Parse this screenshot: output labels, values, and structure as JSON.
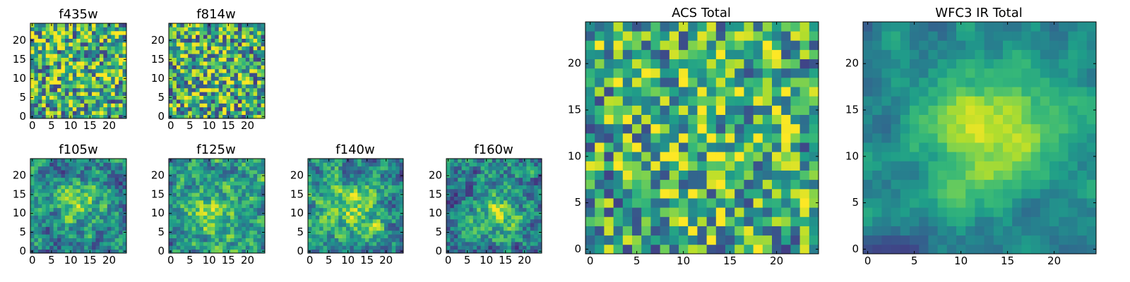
{
  "chart_data": [
    {
      "type": "heatmap",
      "title": "f435w",
      "grid": 25,
      "xticks": [
        0,
        5,
        10,
        15,
        20
      ],
      "yticks": [
        0,
        5,
        10,
        15,
        20
      ],
      "xlim": [
        0,
        24
      ],
      "ylim": [
        0,
        24
      ],
      "colormap": "viridis",
      "seed": 11,
      "smooth": 0,
      "peak": [
        12,
        12
      ],
      "peak_sigma": 5,
      "peak_amp": 0.05,
      "noise_amp": 0.45,
      "base": 0.62
    },
    {
      "type": "heatmap",
      "title": "f814w",
      "grid": 25,
      "xticks": [
        0,
        5,
        10,
        15,
        20
      ],
      "yticks": [
        0,
        5,
        10,
        15,
        20
      ],
      "xlim": [
        0,
        24
      ],
      "ylim": [
        0,
        24
      ],
      "colormap": "viridis",
      "seed": 23,
      "smooth": 0,
      "peak": [
        11,
        12
      ],
      "peak_sigma": 5,
      "peak_amp": 0.1,
      "noise_amp": 0.45,
      "base": 0.6
    },
    {
      "type": "heatmap",
      "title": "f105w",
      "grid": 25,
      "xticks": [
        0,
        5,
        10,
        15,
        20
      ],
      "yticks": [
        0,
        5,
        10,
        15,
        20
      ],
      "xlim": [
        0,
        24
      ],
      "ylim": [
        0,
        24
      ],
      "colormap": "viridis",
      "seed": 37,
      "smooth": 1,
      "peak": [
        12,
        13
      ],
      "peak_sigma": 4,
      "peak_amp": 0.35,
      "noise_amp": 0.5,
      "base": 0.45
    },
    {
      "type": "heatmap",
      "title": "f125w",
      "grid": 25,
      "xticks": [
        0,
        5,
        10,
        15,
        20
      ],
      "yticks": [
        0,
        5,
        10,
        15,
        20
      ],
      "xlim": [
        0,
        24
      ],
      "ylim": [
        0,
        24
      ],
      "colormap": "viridis",
      "seed": 41,
      "smooth": 1,
      "peak": [
        11,
        10
      ],
      "peak_sigma": 5,
      "peak_amp": 0.3,
      "noise_amp": 0.5,
      "base": 0.5
    },
    {
      "type": "heatmap",
      "title": "f140w",
      "grid": 25,
      "xticks": [
        0,
        5,
        10,
        15,
        20
      ],
      "yticks": [
        0,
        5,
        10,
        15,
        20
      ],
      "xlim": [
        0,
        24
      ],
      "ylim": [
        0,
        24
      ],
      "colormap": "viridis",
      "seed": 53,
      "smooth": 1,
      "peak": [
        12,
        11
      ],
      "peak_sigma": 5,
      "peak_amp": 0.3,
      "noise_amp": 0.5,
      "base": 0.5
    },
    {
      "type": "heatmap",
      "title": "f160w",
      "grid": 25,
      "xticks": [
        0,
        5,
        10,
        15,
        20
      ],
      "yticks": [
        0,
        5,
        10,
        15,
        20
      ],
      "xlim": [
        0,
        24
      ],
      "ylim": [
        0,
        24
      ],
      "colormap": "viridis",
      "seed": 67,
      "smooth": 1,
      "peak": [
        13,
        10
      ],
      "peak_sigma": 4,
      "peak_amp": 0.35,
      "noise_amp": 0.5,
      "base": 0.45
    },
    {
      "type": "heatmap",
      "title": "ACS Total",
      "grid": 25,
      "xticks": [
        0,
        5,
        10,
        15,
        20
      ],
      "yticks": [
        0,
        5,
        10,
        15,
        20
      ],
      "xlim": [
        0,
        24
      ],
      "ylim": [
        0,
        24
      ],
      "colormap": "viridis",
      "seed": 79,
      "smooth": 0,
      "peak": [
        12,
        12
      ],
      "peak_sigma": 6,
      "peak_amp": 0.1,
      "noise_amp": 0.42,
      "base": 0.6
    },
    {
      "type": "heatmap",
      "title": "WFC3 IR Total",
      "grid": 25,
      "xticks": [
        0,
        5,
        10,
        15,
        20
      ],
      "yticks": [
        0,
        5,
        10,
        15,
        20
      ],
      "xlim": [
        0,
        24
      ],
      "ylim": [
        0,
        24
      ],
      "colormap": "viridis",
      "seed": 97,
      "smooth": 2,
      "peak": [
        13,
        13
      ],
      "peak_sigma": 5,
      "peak_amp": 0.45,
      "noise_amp": 0.35,
      "base": 0.45
    }
  ]
}
